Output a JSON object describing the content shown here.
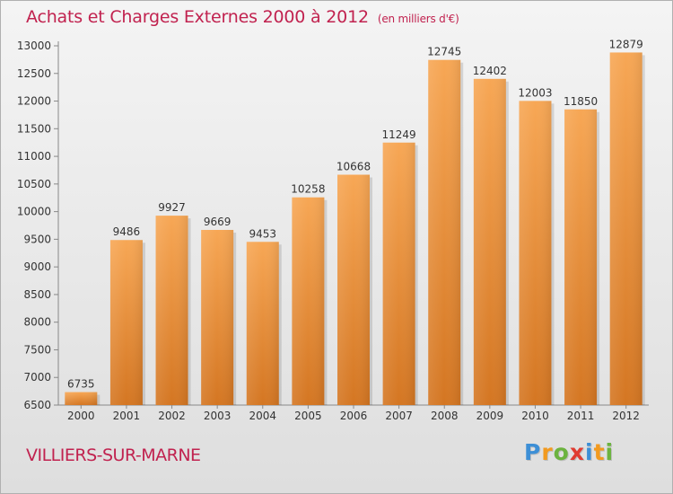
{
  "title": "Achats et Charges Externes 2000 à 2012",
  "unit": "(en milliers d'€)",
  "location": "VILLIERS-SUR-MARNE",
  "logo": {
    "letters": [
      {
        "char": "P",
        "color": "#3d8fd6"
      },
      {
        "char": "r",
        "color": "#f29a1f"
      },
      {
        "char": "o",
        "color": "#6cb33f"
      },
      {
        "char": "x",
        "color": "#e03c31"
      },
      {
        "char": "i",
        "color": "#3d8fd6"
      },
      {
        "char": "t",
        "color": "#f29a1f"
      },
      {
        "char": "i",
        "color": "#6cb33f"
      }
    ]
  },
  "colors": {
    "bar_light": "#f7a755",
    "bar_dark": "#d47622",
    "title": "#c1224f"
  },
  "chart_data": {
    "type": "bar",
    "categories": [
      "2000",
      "2001",
      "2002",
      "2003",
      "2004",
      "2005",
      "2006",
      "2007",
      "2008",
      "2009",
      "2010",
      "2011",
      "2012"
    ],
    "values": [
      6735,
      9486,
      9927,
      9669,
      9453,
      10258,
      10668,
      11249,
      12745,
      12402,
      12003,
      11850,
      12879
    ],
    "title": "Achats et Charges Externes 2000 à 2012",
    "subtitle": "(en milliers d'€)",
    "xlabel": "",
    "ylabel": "",
    "ylim": [
      6500,
      13000
    ],
    "yticks": [
      6500,
      7000,
      7500,
      8000,
      8500,
      9000,
      9500,
      10000,
      10500,
      11000,
      11500,
      12000,
      12500,
      13000
    ],
    "grid": false,
    "legend": "none"
  }
}
